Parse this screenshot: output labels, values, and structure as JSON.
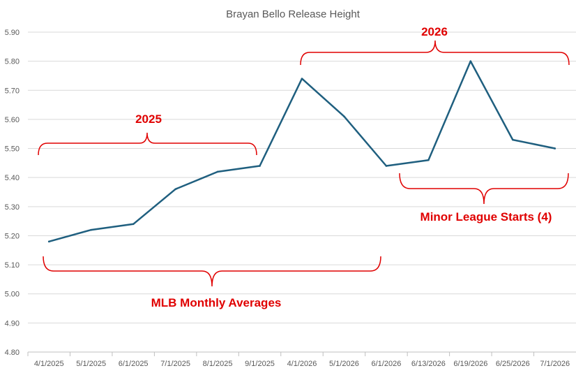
{
  "chart_data": {
    "type": "line",
    "title": "Brayan Bello Release Height",
    "xlabel": "",
    "ylabel": "",
    "categories": [
      "4/1/2025",
      "5/1/2025",
      "6/1/2025",
      "7/1/2025",
      "8/1/2025",
      "9/1/2025",
      "4/1/2026",
      "5/1/2026",
      "6/1/2026",
      "6/13/2026",
      "6/19/2026",
      "6/25/2026",
      "7/1/2026"
    ],
    "series": [
      {
        "values": [
          5.18,
          5.22,
          5.24,
          5.36,
          5.42,
          5.44,
          5.74,
          5.61,
          5.44,
          5.46,
          5.8,
          5.53,
          5.5
        ]
      }
    ],
    "ylim": [
      4.8,
      5.9
    ],
    "yticks": [
      "4.80",
      "4.90",
      "5.00",
      "5.10",
      "5.20",
      "5.30",
      "5.40",
      "5.50",
      "5.60",
      "5.70",
      "5.80",
      "5.90"
    ],
    "grid": true,
    "legend": "none",
    "colors": {
      "line": "#1f5f7f",
      "annotation": "#e00000",
      "grid": "#d9d9d9",
      "text": "#595959"
    },
    "annotations": {
      "year_2025": "2025",
      "year_2026": "2026",
      "mlb": "MLB Monthly Averages",
      "minor": "Minor League Starts (4)"
    }
  }
}
